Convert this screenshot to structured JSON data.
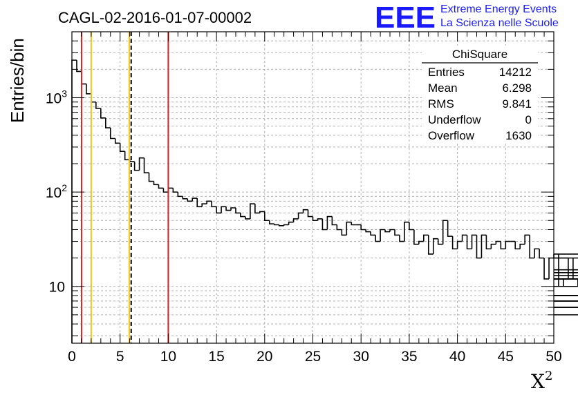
{
  "colors": {
    "red_line": "#dd2222",
    "yellow_line": "#f5c518",
    "logo_blue": "#1a1aff"
  },
  "logo": {
    "mark": "EEE",
    "line1": "Extreme Energy Events",
    "line2": "La Scienza nelle Scuole"
  },
  "stats_box": {
    "title": "ChiSquare",
    "rows": [
      {
        "label": "Entries",
        "value": "14212"
      },
      {
        "label": "Mean",
        "value": "6.298"
      },
      {
        "label": "RMS",
        "value": "9.841"
      },
      {
        "label": "Underflow",
        "value": "0"
      },
      {
        "label": "Overflow",
        "value": "1630"
      }
    ]
  },
  "chart_data": {
    "type": "histogram",
    "title": "CAGL-02-2016-01-07-00002",
    "xlabel": "X",
    "xlabel_superscript": "2",
    "ylabel": "Entries/bin",
    "xlim": [
      0,
      50
    ],
    "ylim": [
      2.5,
      5000
    ],
    "yscale": "log",
    "grid": true,
    "x_ticks": [
      0,
      5,
      10,
      15,
      20,
      25,
      30,
      35,
      40,
      45,
      50
    ],
    "y_ticks": [
      {
        "value": 10,
        "base": "10",
        "exp": ""
      },
      {
        "value": 100,
        "base": "10",
        "exp": "2"
      },
      {
        "value": 1000,
        "base": "10",
        "exp": "3"
      }
    ],
    "bin_width": 0.5,
    "bin_values": [
      2500,
      1900,
      1400,
      1100,
      900,
      770,
      610,
      480,
      370,
      330,
      270,
      220,
      210,
      170,
      230,
      160,
      130,
      120,
      110,
      100,
      110,
      100,
      90,
      85,
      80,
      86,
      70,
      75,
      80,
      70,
      60,
      70,
      64,
      68,
      60,
      55,
      52,
      75,
      60,
      62,
      50,
      46,
      45,
      44,
      45,
      48,
      52,
      60,
      65,
      55,
      50,
      52,
      40,
      55,
      45,
      40,
      35,
      48,
      45,
      45,
      40,
      38,
      35,
      30,
      40,
      38,
      40,
      35,
      30,
      48,
      40,
      28,
      30,
      35,
      22,
      32,
      28,
      50,
      34,
      25,
      30,
      35,
      25,
      35,
      20,
      35,
      25,
      28,
      30,
      25,
      30,
      30,
      25,
      28,
      35,
      20,
      25,
      20,
      12,
      20,
      22,
      10,
      12,
      20,
      12,
      10,
      22,
      15,
      10,
      7,
      14,
      5,
      20,
      10,
      8,
      7,
      6,
      7,
      6,
      8,
      12,
      12,
      8,
      10,
      10,
      10,
      13,
      10,
      12,
      10,
      10,
      10
    ],
    "vertical_lines": [
      {
        "x": 1.0,
        "color": "red",
        "style": "solid"
      },
      {
        "x": 2.0,
        "color": "yellow",
        "style": "solid"
      },
      {
        "x": 5.95,
        "color": "yellow",
        "style": "solid"
      },
      {
        "x": 6.15,
        "color": "black",
        "style": "dashed"
      },
      {
        "x": 10.0,
        "color": "red",
        "style": "solid"
      }
    ],
    "stats_position": "top-right"
  }
}
